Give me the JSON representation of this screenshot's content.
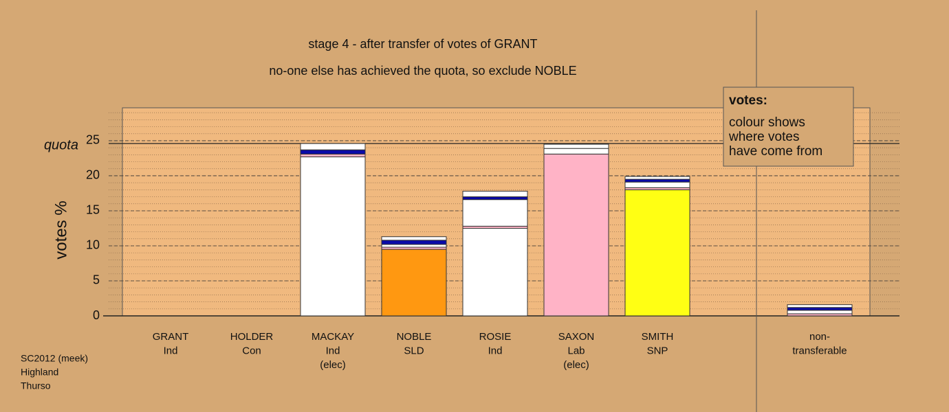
{
  "chart_data": {
    "type": "stacked_bar",
    "title": "stage 4 - after transfer of votes of GRANT",
    "subtitle": "no-one else has achieved the quota, so exclude NOBLE",
    "y_label": "votes %",
    "quota_label": "quota",
    "quota": 24.6,
    "categories": [
      [
        "GRANT",
        "Ind"
      ],
      [
        "HOLDER",
        "Con"
      ],
      [
        "MACKAY",
        "Ind",
        "(elec)"
      ],
      [
        "NOBLE",
        "SLD"
      ],
      [
        "ROSIE",
        "Ind"
      ],
      [
        "SAXON",
        "Lab",
        "(elec)"
      ],
      [
        "SMITH",
        "SNP"
      ],
      null,
      [
        "non-",
        "transferable"
      ]
    ],
    "series": [
      {
        "colors": [
          "#ffffff",
          "#ffffff",
          "#ffffff",
          "#ff9811",
          "#ffffff",
          "#ffb3c6",
          "#ffff14",
          null,
          "#ffffff"
        ],
        "values": [
          0,
          0,
          22.7,
          9.5,
          12.5,
          23.1,
          18.0,
          null,
          0
        ]
      },
      {
        "color": "#ffb3c6",
        "values": [
          0,
          0,
          0.4,
          0.3,
          0.3,
          0,
          0.3,
          null,
          0.3
        ]
      },
      {
        "color": "#ffffff",
        "values": [
          0,
          0,
          0,
          0.4,
          3.8,
          0.8,
          0.8,
          null,
          0.5
        ]
      },
      {
        "color": "#0a0aa8",
        "values": [
          0,
          0,
          0.6,
          0.6,
          0.4,
          0,
          0.4,
          null,
          0.4
        ]
      },
      {
        "color": "#ffffff",
        "values": [
          0,
          0,
          0.9,
          0.5,
          0.8,
          0.6,
          0.4,
          null,
          0.4
        ]
      }
    ],
    "ylim": [
      0,
      29.7
    ],
    "yticks": [
      0,
      5,
      10,
      15,
      20,
      25
    ],
    "minor_grid": 1,
    "legend": {
      "title": "votes:",
      "lines": [
        "colour shows",
        "where votes",
        "have come from"
      ]
    },
    "footer": [
      "SC2012 (meek)",
      "Highland",
      "Thurso"
    ]
  }
}
